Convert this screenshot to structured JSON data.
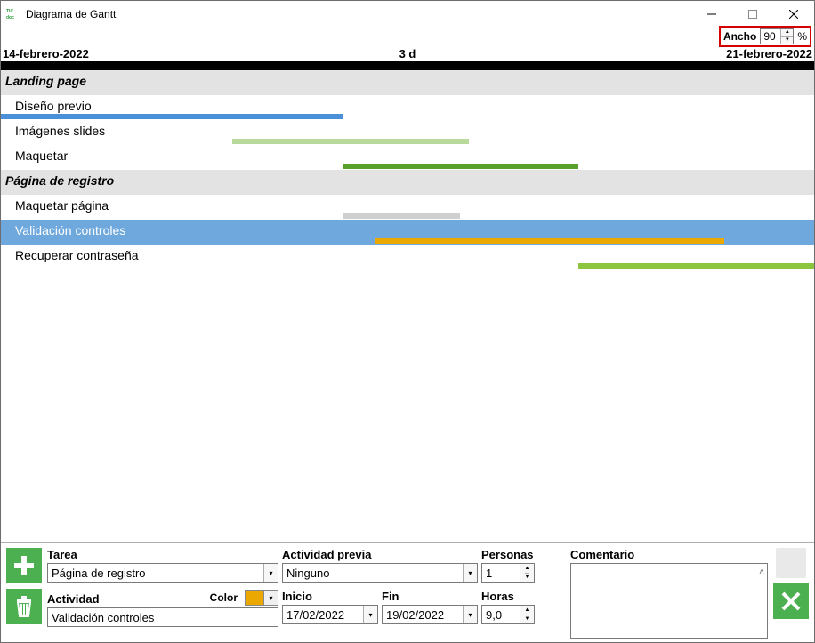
{
  "titlebar": {
    "title": "Diagrama de Gantt"
  },
  "ancho": {
    "label": "Ancho",
    "value": "90",
    "percent": "%"
  },
  "daterow": {
    "start": "14-febrero-2022",
    "center": "3 d",
    "end": "21-febrero-2022"
  },
  "colors": {
    "group_bg": "#e3e3e3",
    "select_bg": "#6ea8dc",
    "add_btn": "#4caf50",
    "trash_btn": "#4caf50",
    "close_btn": "#4caf50",
    "highlight_border": "#d40000"
  },
  "gantt": {
    "rows": [
      {
        "type": "group",
        "label": "Landing page"
      },
      {
        "type": "task",
        "label": "Diseño previo",
        "bar": {
          "left_pct": 0,
          "width_pct": 42,
          "color": "#4a90d9"
        }
      },
      {
        "type": "task",
        "label": "Imágenes slides",
        "bar": {
          "left_pct": 28.5,
          "width_pct": 29,
          "color": "#b8d99b"
        }
      },
      {
        "type": "task",
        "label": "Maquetar",
        "bar": {
          "left_pct": 42,
          "width_pct": 29,
          "color": "#5aa02c"
        }
      },
      {
        "type": "group",
        "label": "Página de registro"
      },
      {
        "type": "task",
        "label": "Maquetar página",
        "bar": {
          "left_pct": 42,
          "width_pct": 14.5,
          "color": "#cfcfcf"
        }
      },
      {
        "type": "task",
        "label": "Validación controles",
        "bar": {
          "left_pct": 46,
          "width_pct": 43,
          "color": "#eaa800"
        },
        "selected": true
      },
      {
        "type": "task",
        "label": "Recuperar contraseña",
        "bar": {
          "left_pct": 71,
          "width_pct": 29,
          "color": "#8cc63f"
        }
      }
    ]
  },
  "editor": {
    "labels": {
      "tarea": "Tarea",
      "actividad": "Actividad",
      "color": "Color",
      "actividad_previa": "Actividad previa",
      "inicio": "Inicio",
      "fin": "Fin",
      "personas": "Personas",
      "horas": "Horas",
      "comentario": "Comentario"
    },
    "values": {
      "tarea": "Página de registro",
      "actividad": "Validación controles",
      "color": "#eaa800",
      "actividad_previa": "Ninguno",
      "inicio": "17/02/2022",
      "fin": "19/02/2022",
      "personas": "1",
      "horas": "9,0",
      "comentario": ""
    }
  }
}
